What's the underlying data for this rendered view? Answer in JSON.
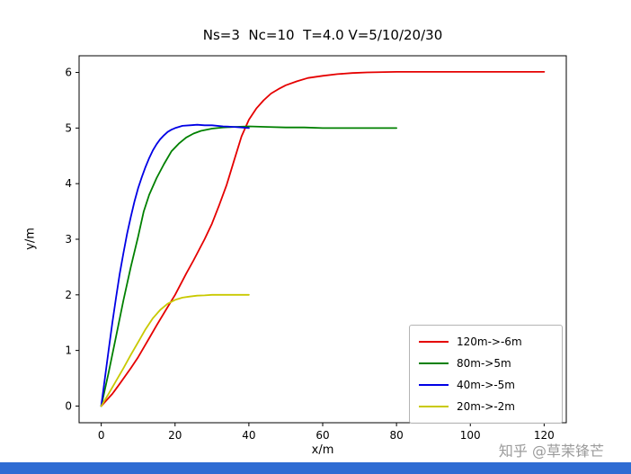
{
  "figure": {
    "watermark": "知乎 @草茉锋芒",
    "bottom_bar_color": "#2f6cd3",
    "background": "#ffffff"
  },
  "chart_data": {
    "type": "line",
    "title": "Ns=3  Nc=10  T=4.0 V=5/10/20/30",
    "xlabel": "x/m",
    "ylabel": "y/m",
    "xlim": [
      -6,
      126
    ],
    "ylim": [
      -0.3,
      6.3
    ],
    "xticks": [
      0,
      20,
      40,
      60,
      80,
      100,
      120
    ],
    "yticks": [
      0,
      1,
      2,
      3,
      4,
      5,
      6
    ],
    "grid": false,
    "legend_position": "lower right",
    "series": [
      {
        "name": "120m->-6m",
        "color": "#e50000",
        "points": [
          [
            0,
            0
          ],
          [
            3,
            0.22
          ],
          [
            5,
            0.4
          ],
          [
            8,
            0.68
          ],
          [
            10,
            0.88
          ],
          [
            13,
            1.22
          ],
          [
            15,
            1.45
          ],
          [
            18,
            1.78
          ],
          [
            20,
            2.0
          ],
          [
            23,
            2.38
          ],
          [
            25,
            2.62
          ],
          [
            28,
            3.0
          ],
          [
            30,
            3.28
          ],
          [
            32,
            3.62
          ],
          [
            34,
            3.98
          ],
          [
            36,
            4.42
          ],
          [
            38,
            4.85
          ],
          [
            40,
            5.15
          ],
          [
            42,
            5.35
          ],
          [
            44,
            5.5
          ],
          [
            46,
            5.62
          ],
          [
            48,
            5.7
          ],
          [
            50,
            5.77
          ],
          [
            53,
            5.84
          ],
          [
            56,
            5.9
          ],
          [
            60,
            5.94
          ],
          [
            64,
            5.97
          ],
          [
            68,
            5.99
          ],
          [
            72,
            6.0
          ],
          [
            80,
            6.01
          ],
          [
            90,
            6.01
          ],
          [
            100,
            6.01
          ],
          [
            110,
            6.01
          ],
          [
            120,
            6.01
          ]
        ]
      },
      {
        "name": "80m->5m",
        "color": "#008000",
        "points": [
          [
            0,
            0
          ],
          [
            2,
            0.6
          ],
          [
            4,
            1.25
          ],
          [
            6,
            1.9
          ],
          [
            8,
            2.5
          ],
          [
            10,
            3.05
          ],
          [
            11.5,
            3.5
          ],
          [
            13,
            3.8
          ],
          [
            15,
            4.1
          ],
          [
            17,
            4.35
          ],
          [
            19,
            4.58
          ],
          [
            21,
            4.72
          ],
          [
            23,
            4.83
          ],
          [
            25,
            4.9
          ],
          [
            27,
            4.95
          ],
          [
            30,
            4.99
          ],
          [
            33,
            5.01
          ],
          [
            36,
            5.02
          ],
          [
            40,
            5.03
          ],
          [
            45,
            5.02
          ],
          [
            50,
            5.01
          ],
          [
            55,
            5.01
          ],
          [
            60,
            5.0
          ],
          [
            70,
            5.0
          ],
          [
            80,
            5.0
          ]
        ]
      },
      {
        "name": "40m->-5m",
        "color": "#0000e5",
        "points": [
          [
            0,
            0
          ],
          [
            1,
            0.5
          ],
          [
            2,
            1.0
          ],
          [
            3,
            1.5
          ],
          [
            4,
            1.95
          ],
          [
            5,
            2.38
          ],
          [
            6,
            2.75
          ],
          [
            7,
            3.1
          ],
          [
            8,
            3.4
          ],
          [
            9,
            3.68
          ],
          [
            10,
            3.92
          ],
          [
            11,
            4.12
          ],
          [
            12,
            4.3
          ],
          [
            13,
            4.46
          ],
          [
            14,
            4.6
          ],
          [
            15,
            4.71
          ],
          [
            16,
            4.8
          ],
          [
            17,
            4.87
          ],
          [
            18,
            4.93
          ],
          [
            19,
            4.97
          ],
          [
            20,
            5.0
          ],
          [
            22,
            5.04
          ],
          [
            24,
            5.05
          ],
          [
            26,
            5.06
          ],
          [
            28,
            5.05
          ],
          [
            30,
            5.05
          ],
          [
            33,
            5.03
          ],
          [
            36,
            5.02
          ],
          [
            38,
            5.01
          ],
          [
            40,
            5.0
          ]
        ]
      },
      {
        "name": "20m->-2m",
        "color": "#c9c900",
        "points": [
          [
            0,
            0
          ],
          [
            2,
            0.22
          ],
          [
            4,
            0.45
          ],
          [
            6,
            0.68
          ],
          [
            8,
            0.92
          ],
          [
            10,
            1.15
          ],
          [
            12,
            1.38
          ],
          [
            14,
            1.58
          ],
          [
            16,
            1.73
          ],
          [
            18,
            1.84
          ],
          [
            20,
            1.91
          ],
          [
            22,
            1.95
          ],
          [
            24,
            1.97
          ],
          [
            26,
            1.985
          ],
          [
            28,
            1.99
          ],
          [
            30,
            2.0
          ],
          [
            33,
            2.0
          ],
          [
            36,
            2.0
          ],
          [
            40,
            2.0
          ]
        ]
      }
    ]
  }
}
